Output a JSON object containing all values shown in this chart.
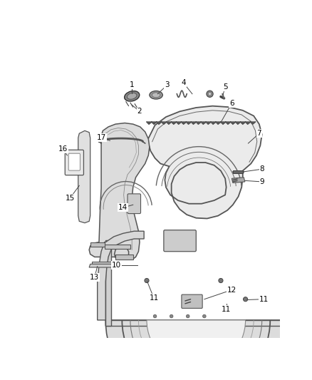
{
  "background_color": "#ffffff",
  "fig_width": 4.38,
  "fig_height": 5.33,
  "dpi": 100,
  "edge_color": "#444444",
  "fill_light": "#e8e8e8",
  "fill_mid": "#d0d0d0",
  "fill_dark": "#b0b0b0"
}
